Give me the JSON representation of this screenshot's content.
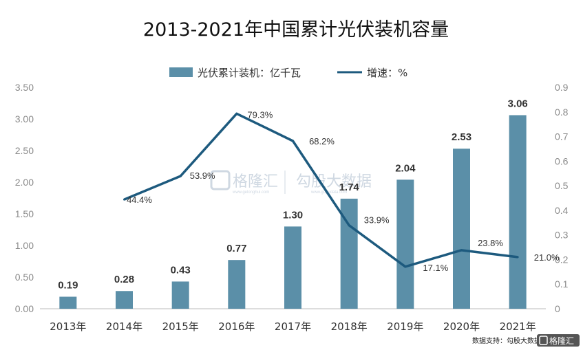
{
  "chart_data": {
    "type": "bar",
    "title": "2013-2021年中国累计光伏装机容量",
    "categories": [
      "2013年",
      "2014年",
      "2015年",
      "2016年",
      "2017年",
      "2018年",
      "2019年",
      "2020年",
      "2021年"
    ],
    "series": [
      {
        "name": "光伏累计装机：亿千瓦",
        "type": "bar",
        "axis": "left",
        "values": [
          0.19,
          0.28,
          0.43,
          0.77,
          1.3,
          1.74,
          2.04,
          2.53,
          3.06
        ],
        "labels": [
          "0.19",
          "0.28",
          "0.43",
          "0.77",
          "1.30",
          "1.74",
          "2.04",
          "2.53",
          "3.06"
        ],
        "color": "#5b8fa8"
      },
      {
        "name": "增速：%",
        "type": "line",
        "axis": "right",
        "values": [
          null,
          0.444,
          0.539,
          0.793,
          0.682,
          0.339,
          0.171,
          0.238,
          0.21
        ],
        "labels": [
          null,
          "44.4%",
          "53.9%",
          "79.3%",
          "68.2%",
          "33.9%",
          "17.1%",
          "23.8%",
          "21.0%"
        ],
        "color": "#1d5a7e"
      }
    ],
    "y_left": {
      "ylim": [
        0,
        3.5
      ],
      "ticks": [
        "0.00",
        "0.50",
        "1.00",
        "1.50",
        "2.00",
        "2.50",
        "3.00",
        "3.50"
      ]
    },
    "y_right": {
      "ylim": [
        0,
        0.9
      ],
      "ticks": [
        "0",
        "0.1",
        "0.2",
        "0.3",
        "0.4",
        "0.5",
        "0.6",
        "0.7",
        "0.8",
        "0.9"
      ]
    },
    "legend_position": "top-center",
    "grid": false
  },
  "watermark": {
    "brand": "格隆汇",
    "brand_sub": "www.gelonghui.com",
    "data_brand": "勾股大数据",
    "data_sub": "www.gogudata.com"
  },
  "footer": {
    "source": "数据支持：勾股大数据",
    "logo": "格隆汇"
  },
  "colors": {
    "bar": "#5b8fa8",
    "line": "#1d5a7e",
    "watermark": "#cfd8e2"
  }
}
